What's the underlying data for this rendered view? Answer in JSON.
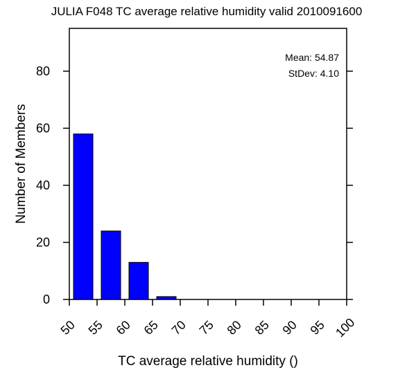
{
  "chart_data": {
    "type": "bar",
    "title": "JULIA F048 TC average relative humidity valid 2010091600",
    "xlabel": "TC average relative humidity ()",
    "ylabel": "Number of Members",
    "categories": [
      "50-55",
      "55-60",
      "60-65",
      "65-70",
      "70-75",
      "75-80",
      "80-85",
      "85-90",
      "90-95",
      "95-100"
    ],
    "bin_edges": [
      50,
      55,
      60,
      65,
      70,
      75,
      80,
      85,
      90,
      95,
      100
    ],
    "values": [
      58,
      24,
      13,
      1,
      0,
      0,
      0,
      0,
      0,
      0
    ],
    "xlim": [
      50,
      100
    ],
    "ylim": [
      0,
      95
    ],
    "xticks": [
      "50",
      "55",
      "60",
      "65",
      "70",
      "75",
      "80",
      "85",
      "90",
      "95",
      "100"
    ],
    "yticks": [
      "0",
      "20",
      "40",
      "60",
      "80"
    ],
    "bar_color": "#0000ff",
    "grid": false,
    "annotations": {
      "mean": "Mean: 54.87",
      "stdev": "StDev: 4.10"
    }
  }
}
